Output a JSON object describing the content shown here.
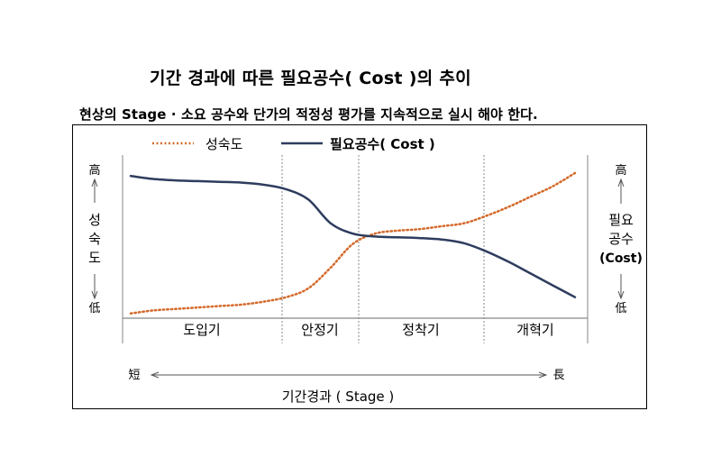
{
  "page": {
    "title": "기간 경과에 따른 필요공수( Cost )의 추이",
    "subtitle": "현상의 Stage · 소요 공수와 단가의 적정성 평가를 지속적으로 실시 해야 한다."
  },
  "chart_data": {
    "type": "line",
    "title": "기간 경과에 따른 필요공수( Cost )의 추이",
    "xlabel": "기간경과 ( Stage )",
    "x_axis_ends": {
      "left": "短",
      "right": "長"
    },
    "left_axis": {
      "label": [
        "성",
        "숙",
        "도"
      ],
      "high": "高",
      "low": "低"
    },
    "right_axis": {
      "label": [
        "필요",
        "공수",
        "(Cost)"
      ],
      "high": "高",
      "low": "低"
    },
    "stages": [
      "도입기",
      "안정기",
      "정착기",
      "개혁기"
    ],
    "legend": {
      "position": "top-left"
    },
    "ylim": [
      0,
      100
    ],
    "x": [
      0,
      5,
      10,
      15,
      20,
      25,
      30,
      35,
      40,
      45,
      50,
      55,
      60,
      65,
      70,
      75,
      80,
      85,
      90,
      95,
      100
    ],
    "series": [
      {
        "name": "성숙도",
        "color": "#d4692a",
        "style": "dotted",
        "values": [
          2,
          4,
          5,
          6,
          7,
          8,
          10,
          13,
          19,
          33,
          49,
          56,
          58,
          59,
          61,
          63,
          68,
          74,
          81,
          88,
          97
        ]
      },
      {
        "name": "필요공수( Cost )",
        "color": "#2e3d5e",
        "style": "solid",
        "values": [
          95,
          93,
          92,
          91.5,
          91,
          90.5,
          89,
          86,
          79,
          63,
          56,
          54,
          53.5,
          53,
          52,
          49.5,
          44,
          37,
          29,
          21,
          13
        ]
      }
    ]
  }
}
